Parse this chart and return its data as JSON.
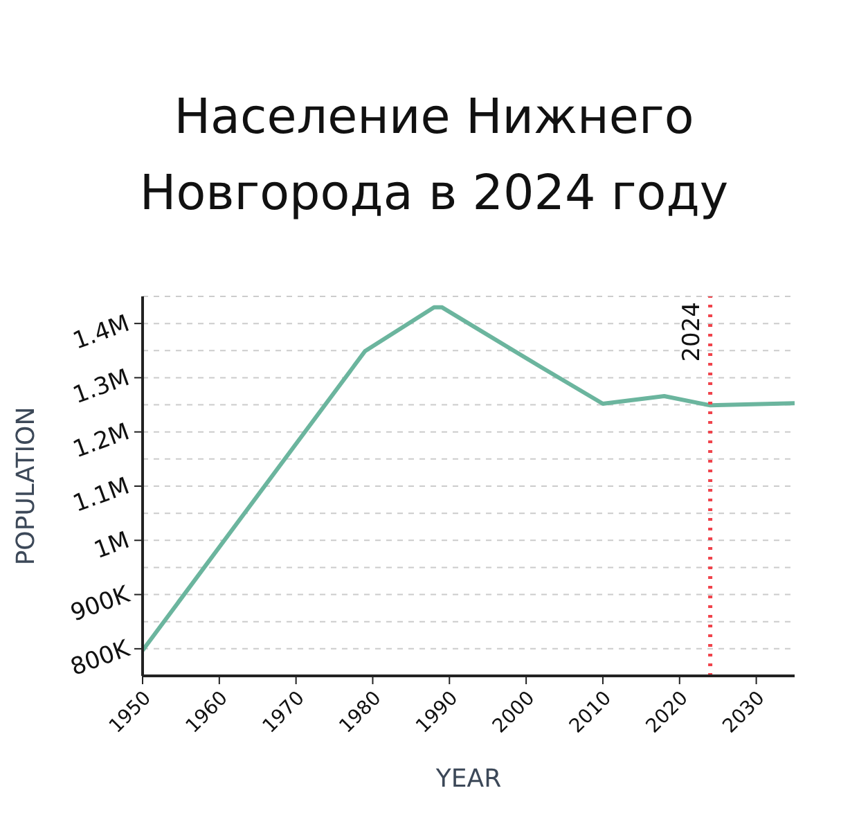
{
  "chart_data": {
    "type": "line",
    "title": "Население Нижнего Новгорода в 2024 году",
    "xlabel": "YEAR",
    "ylabel": "POPULATION",
    "x": [
      1950,
      1970,
      1979,
      1988,
      1989,
      2002,
      2010,
      2018,
      2024,
      2035
    ],
    "series": [
      {
        "color": "#6bb59e",
        "values": [
          797000,
          1178000,
          1349000,
          1430000,
          1430000,
          1319000,
          1252000,
          1266000,
          1249000,
          1253000
        ]
      }
    ],
    "xlim": [
      1950,
      2035
    ],
    "xticks": [
      1950,
      1960,
      1970,
      1980,
      1990,
      2000,
      2010,
      2020,
      2030
    ],
    "ylim": [
      750000,
      1450000
    ],
    "yticks": [
      {
        "value": 750000,
        "label": null
      },
      {
        "value": 800000,
        "label": "800K"
      },
      {
        "value": 850000,
        "label": null
      },
      {
        "value": 900000,
        "label": "900K"
      },
      {
        "value": 950000,
        "label": null
      },
      {
        "value": 1000000,
        "label": "1M"
      },
      {
        "value": 1050000,
        "label": null
      },
      {
        "value": 1100000,
        "label": "1.1M"
      },
      {
        "value": 1150000,
        "label": null
      },
      {
        "value": 1200000,
        "label": "1.2M"
      },
      {
        "value": 1250000,
        "label": null
      },
      {
        "value": 1300000,
        "label": "1.3M"
      },
      {
        "value": 1350000,
        "label": null
      },
      {
        "value": 1400000,
        "label": "1.4M"
      },
      {
        "value": 1450000,
        "label": null
      }
    ],
    "ref_lines": [
      {
        "axis": "x",
        "value": 2024,
        "label": "2024",
        "color": "#f0434b",
        "line_style": "dotted"
      }
    ],
    "grid": "y",
    "marker": "none",
    "line_style": "solid",
    "legend": false
  }
}
